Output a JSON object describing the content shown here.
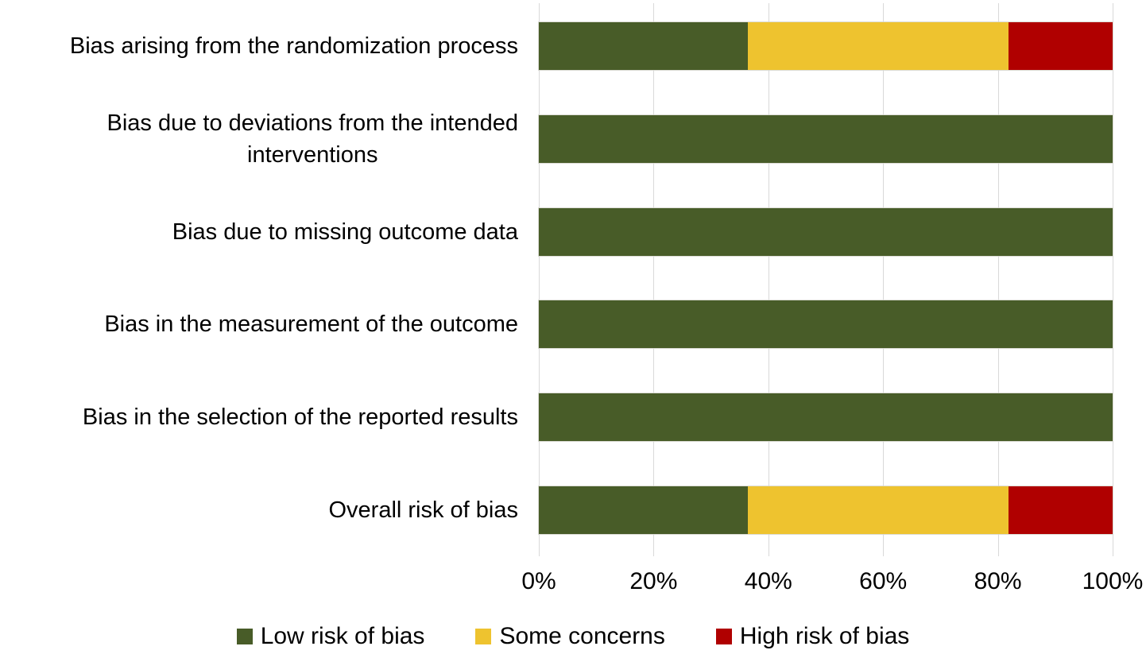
{
  "chart_data": {
    "type": "bar",
    "orientation": "horizontal-stacked",
    "title": "",
    "xlabel": "",
    "ylabel": "",
    "xlim": [
      0,
      100
    ],
    "x_tick_labels": [
      "0%",
      "20%",
      "40%",
      "60%",
      "80%",
      "100%"
    ],
    "grid": true,
    "legend_position": "bottom",
    "categories": [
      "Bias arising from the randomization process",
      "Bias due to deviations from the intended\ninterventions",
      "Bias due to missing outcome data",
      "Bias in the measurement of the outcome",
      "Bias in the selection of the reported results",
      "Overall risk of bias"
    ],
    "series": [
      {
        "name": "Low risk of bias",
        "color": "#485C28",
        "values": [
          36.4,
          100,
          100,
          100,
          100,
          36.4
        ]
      },
      {
        "name": "Some concerns",
        "color": "#EEC32F",
        "values": [
          45.4,
          0,
          0,
          0,
          0,
          45.4
        ]
      },
      {
        "name": "High risk of bias",
        "color": "#B00000",
        "values": [
          18.2,
          0,
          0,
          0,
          0,
          18.2
        ]
      }
    ]
  },
  "colors": {
    "background": "#FFFFFF",
    "gridline": "#D9D9D9",
    "text": "#000000"
  }
}
